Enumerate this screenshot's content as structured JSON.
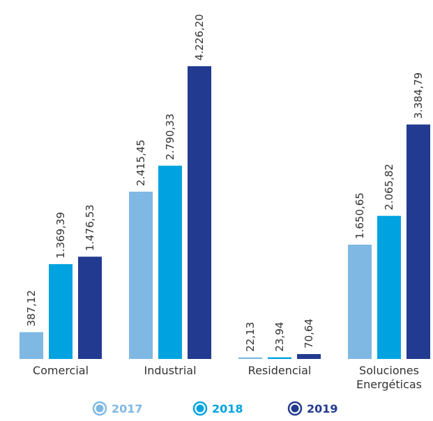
{
  "chart_data": {
    "type": "bar",
    "categories": [
      [
        "Comercial"
      ],
      [
        "Industrial"
      ],
      [
        "Residencial"
      ],
      [
        "Soluciones",
        "Energéticas"
      ]
    ],
    "series": [
      {
        "name": "2017",
        "color": "#7fb8e3",
        "values": [
          387.12,
          2415.45,
          22.13,
          1650.65
        ],
        "labels": [
          "387,12",
          "2.415,45",
          "22,13",
          "1.650,65"
        ]
      },
      {
        "name": "2018",
        "color": "#00a3e0",
        "values": [
          1369.39,
          2790.33,
          23.94,
          2065.82
        ],
        "labels": [
          "1.369,39",
          "2.790,33",
          "23,94",
          "2.065,82"
        ]
      },
      {
        "name": "2019",
        "color": "#223a8f",
        "values": [
          1476.53,
          4226.2,
          70.64,
          3384.79
        ],
        "labels": [
          "1.476,53",
          "4.226,20",
          "70,64",
          "3.384,79"
        ]
      }
    ],
    "ylim": [
      0,
      4226.2
    ],
    "grid": false,
    "legend": "bottom"
  }
}
